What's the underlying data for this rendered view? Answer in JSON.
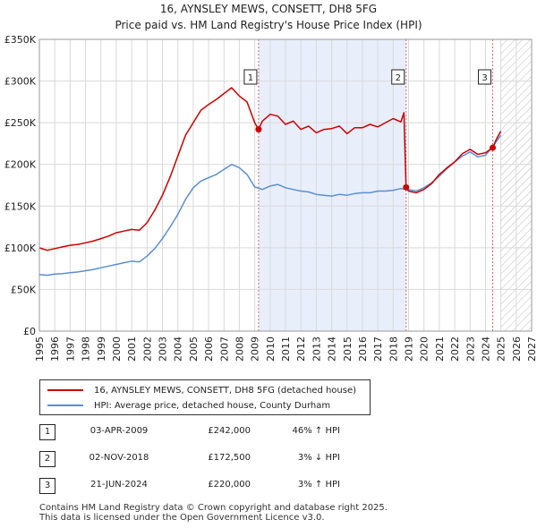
{
  "chart_data": {
    "type": "line",
    "title": "16, AYNSLEY MEWS, CONSETT, DH8 5FG",
    "subtitle": "Price paid vs. HM Land Registry's House Price Index (HPI)",
    "xlim": [
      1995,
      2027
    ],
    "ylim": [
      0,
      350000
    ],
    "x_ticks": [
      "1995",
      "1996",
      "1997",
      "1998",
      "1999",
      "2000",
      "2001",
      "2002",
      "2003",
      "2004",
      "2005",
      "2006",
      "2007",
      "2008",
      "2009",
      "2010",
      "2011",
      "2012",
      "2013",
      "2014",
      "2015",
      "2016",
      "2017",
      "2018",
      "2019",
      "2020",
      "2021",
      "2022",
      "2023",
      "2024",
      "2025",
      "2026",
      "2027"
    ],
    "y_ticks": [
      {
        "value": 0,
        "label": "£0"
      },
      {
        "value": 50000,
        "label": "£50K"
      },
      {
        "value": 100000,
        "label": "£100K"
      },
      {
        "value": 150000,
        "label": "£150K"
      },
      {
        "value": 200000,
        "label": "£200K"
      },
      {
        "value": 250000,
        "label": "£250K"
      },
      {
        "value": 300000,
        "label": "£300K"
      },
      {
        "value": 350000,
        "label": "£350K"
      }
    ],
    "shaded_ownership_period": [
      2009.25,
      2018.84
    ],
    "forecast_hatch_from": 2025.0,
    "series": [
      {
        "name": "16, AYNSLEY MEWS, CONSETT, DH8 5FG (detached house)",
        "color": "#cc0000",
        "x": [
          1995.0,
          1995.5,
          1996.0,
          1996.5,
          1997.0,
          1997.5,
          1998.0,
          1998.5,
          1999.0,
          1999.5,
          2000.0,
          2000.5,
          2001.0,
          2001.5,
          2002.0,
          2002.5,
          2003.0,
          2003.5,
          2004.0,
          2004.5,
          2005.0,
          2005.5,
          2006.0,
          2006.5,
          2007.0,
          2007.5,
          2008.0,
          2008.5,
          2009.0,
          2009.25,
          2009.5,
          2010.0,
          2010.5,
          2011.0,
          2011.5,
          2012.0,
          2012.5,
          2013.0,
          2013.5,
          2014.0,
          2014.5,
          2015.0,
          2015.5,
          2016.0,
          2016.5,
          2017.0,
          2017.5,
          2018.0,
          2018.5,
          2018.7,
          2018.84,
          2019.0,
          2019.5,
          2020.0,
          2020.5,
          2021.0,
          2021.5,
          2022.0,
          2022.5,
          2023.0,
          2023.5,
          2024.0,
          2024.47,
          2024.7,
          2025.0
        ],
        "values": [
          100000,
          97000,
          99000,
          101000,
          103000,
          104000,
          106000,
          108000,
          111000,
          114000,
          118000,
          120000,
          122000,
          121000,
          130000,
          145000,
          163000,
          185000,
          210000,
          235000,
          250000,
          265000,
          272000,
          278000,
          285000,
          292000,
          282000,
          275000,
          250000,
          242000,
          252000,
          260000,
          258000,
          248000,
          252000,
          242000,
          246000,
          238000,
          242000,
          243000,
          246000,
          237000,
          244000,
          244000,
          248000,
          245000,
          250000,
          255000,
          251000,
          262000,
          172500,
          168000,
          166000,
          170000,
          177000,
          188000,
          196000,
          203000,
          213000,
          218000,
          212000,
          214000,
          220000,
          230000,
          240000
        ]
      },
      {
        "name": "HPI: Average price, detached house, County Durham",
        "color": "#5b8fd0",
        "x": [
          1995.0,
          1995.5,
          1996.0,
          1996.5,
          1997.0,
          1997.5,
          1998.0,
          1998.5,
          1999.0,
          1999.5,
          2000.0,
          2000.5,
          2001.0,
          2001.5,
          2002.0,
          2002.5,
          2003.0,
          2003.5,
          2004.0,
          2004.5,
          2005.0,
          2005.5,
          2006.0,
          2006.5,
          2007.0,
          2007.5,
          2008.0,
          2008.5,
          2009.0,
          2009.5,
          2010.0,
          2010.5,
          2011.0,
          2011.5,
          2012.0,
          2012.5,
          2013.0,
          2013.5,
          2014.0,
          2014.5,
          2015.0,
          2015.5,
          2016.0,
          2016.5,
          2017.0,
          2017.5,
          2018.0,
          2018.5,
          2019.0,
          2019.5,
          2020.0,
          2020.5,
          2021.0,
          2021.5,
          2022.0,
          2022.5,
          2023.0,
          2023.5,
          2024.0,
          2024.5,
          2025.0
        ],
        "values": [
          68000,
          67000,
          68500,
          69000,
          70000,
          71000,
          72500,
          74000,
          76000,
          78000,
          80000,
          82000,
          84000,
          83000,
          90000,
          99000,
          111000,
          125000,
          140000,
          158000,
          172000,
          180000,
          184000,
          188000,
          194000,
          200000,
          196000,
          188000,
          173000,
          170000,
          174000,
          176000,
          172000,
          170000,
          168000,
          167000,
          164000,
          163000,
          162000,
          164000,
          163000,
          165000,
          166000,
          166000,
          168000,
          168000,
          169000,
          171000,
          170000,
          168000,
          172000,
          178000,
          186000,
          195000,
          203000,
          210000,
          215000,
          209000,
          211000,
          222000,
          235000
        ]
      }
    ],
    "markers": [
      {
        "label": "1",
        "x": 2009.25,
        "y": 242000
      },
      {
        "label": "2",
        "x": 2018.84,
        "y": 172500
      },
      {
        "label": "3",
        "x": 2024.47,
        "y": 220000
      }
    ]
  },
  "legend": {
    "items": [
      {
        "label": "16, AYNSLEY MEWS, CONSETT, DH8 5FG (detached house)",
        "color": "#cc0000"
      },
      {
        "label": "HPI: Average price, detached house, County Durham",
        "color": "#5b8fd0"
      }
    ]
  },
  "events": [
    {
      "num": "1",
      "date": "03-APR-2009",
      "price": "£242,000",
      "hpi": "46% ↑ HPI"
    },
    {
      "num": "2",
      "date": "02-NOV-2018",
      "price": "£172,500",
      "hpi": "3% ↓ HPI"
    },
    {
      "num": "3",
      "date": "21-JUN-2024",
      "price": "£220,000",
      "hpi": "3% ↑ HPI"
    }
  ],
  "footer": {
    "line1": "Contains HM Land Registry data © Crown copyright and database right 2025.",
    "line2": "This data is licensed under the Open Government Licence v3.0."
  }
}
